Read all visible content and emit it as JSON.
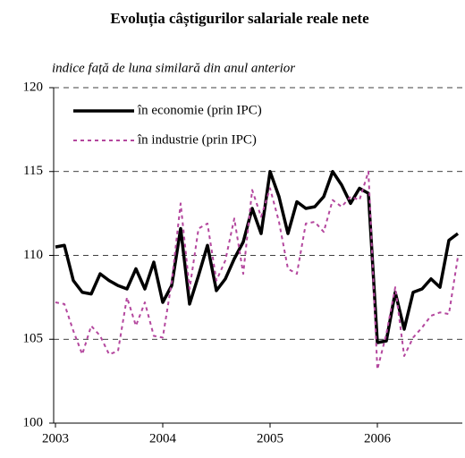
{
  "chart_data": {
    "type": "line",
    "title": "Evoluția câștigurilor salariale reale nete",
    "subtitle": "indice față de luna similară din anul anterior",
    "categories": [
      "2003",
      null,
      null,
      null,
      null,
      null,
      null,
      null,
      null,
      null,
      null,
      null,
      "2004",
      null,
      null,
      null,
      null,
      null,
      null,
      null,
      null,
      null,
      null,
      null,
      "2005",
      null,
      null,
      null,
      null,
      null,
      null,
      null,
      null,
      null,
      null,
      null,
      "2006",
      null,
      null,
      null,
      null,
      null,
      null,
      null,
      null,
      null
    ],
    "series": [
      {
        "name": "în economie (prin IPC)",
        "color": "#000000",
        "dash": "solid",
        "values": [
          110.5,
          110.6,
          108.5,
          107.8,
          107.7,
          108.9,
          108.5,
          108.2,
          108.0,
          109.2,
          108.0,
          109.6,
          107.2,
          108.2,
          111.6,
          107.1,
          108.8,
          110.6,
          107.9,
          108.6,
          109.8,
          110.8,
          112.8,
          111.3,
          115.0,
          113.5,
          111.3,
          113.2,
          112.8,
          112.9,
          113.5,
          115.0,
          114.2,
          113.1,
          114.0,
          113.7,
          104.8,
          104.9,
          107.8,
          105.6,
          107.8,
          108.0,
          108.6,
          108.1,
          110.9,
          111.3
        ]
      },
      {
        "name": "în industrie (prin IPC)",
        "color": "#b4479e",
        "dash": "dashed",
        "values": [
          107.2,
          107.1,
          105.5,
          104.1,
          105.8,
          105.2,
          104.1,
          104.3,
          107.5,
          105.8,
          107.2,
          105.2,
          105.1,
          108.4,
          113.1,
          108.0,
          111.6,
          111.9,
          108.5,
          109.7,
          112.2,
          108.9,
          113.9,
          112.3,
          114.0,
          112.0,
          109.2,
          108.9,
          111.9,
          112.0,
          111.4,
          113.3,
          112.9,
          113.5,
          113.3,
          115.0,
          103.2,
          105.3,
          108.1,
          104.0,
          105.1,
          105.7,
          106.4,
          106.6,
          106.5,
          109.9
        ]
      }
    ],
    "ylim": [
      100,
      120
    ],
    "yticks": [
      100,
      105,
      110,
      115,
      120
    ],
    "grid": true,
    "legend": "upper left"
  }
}
